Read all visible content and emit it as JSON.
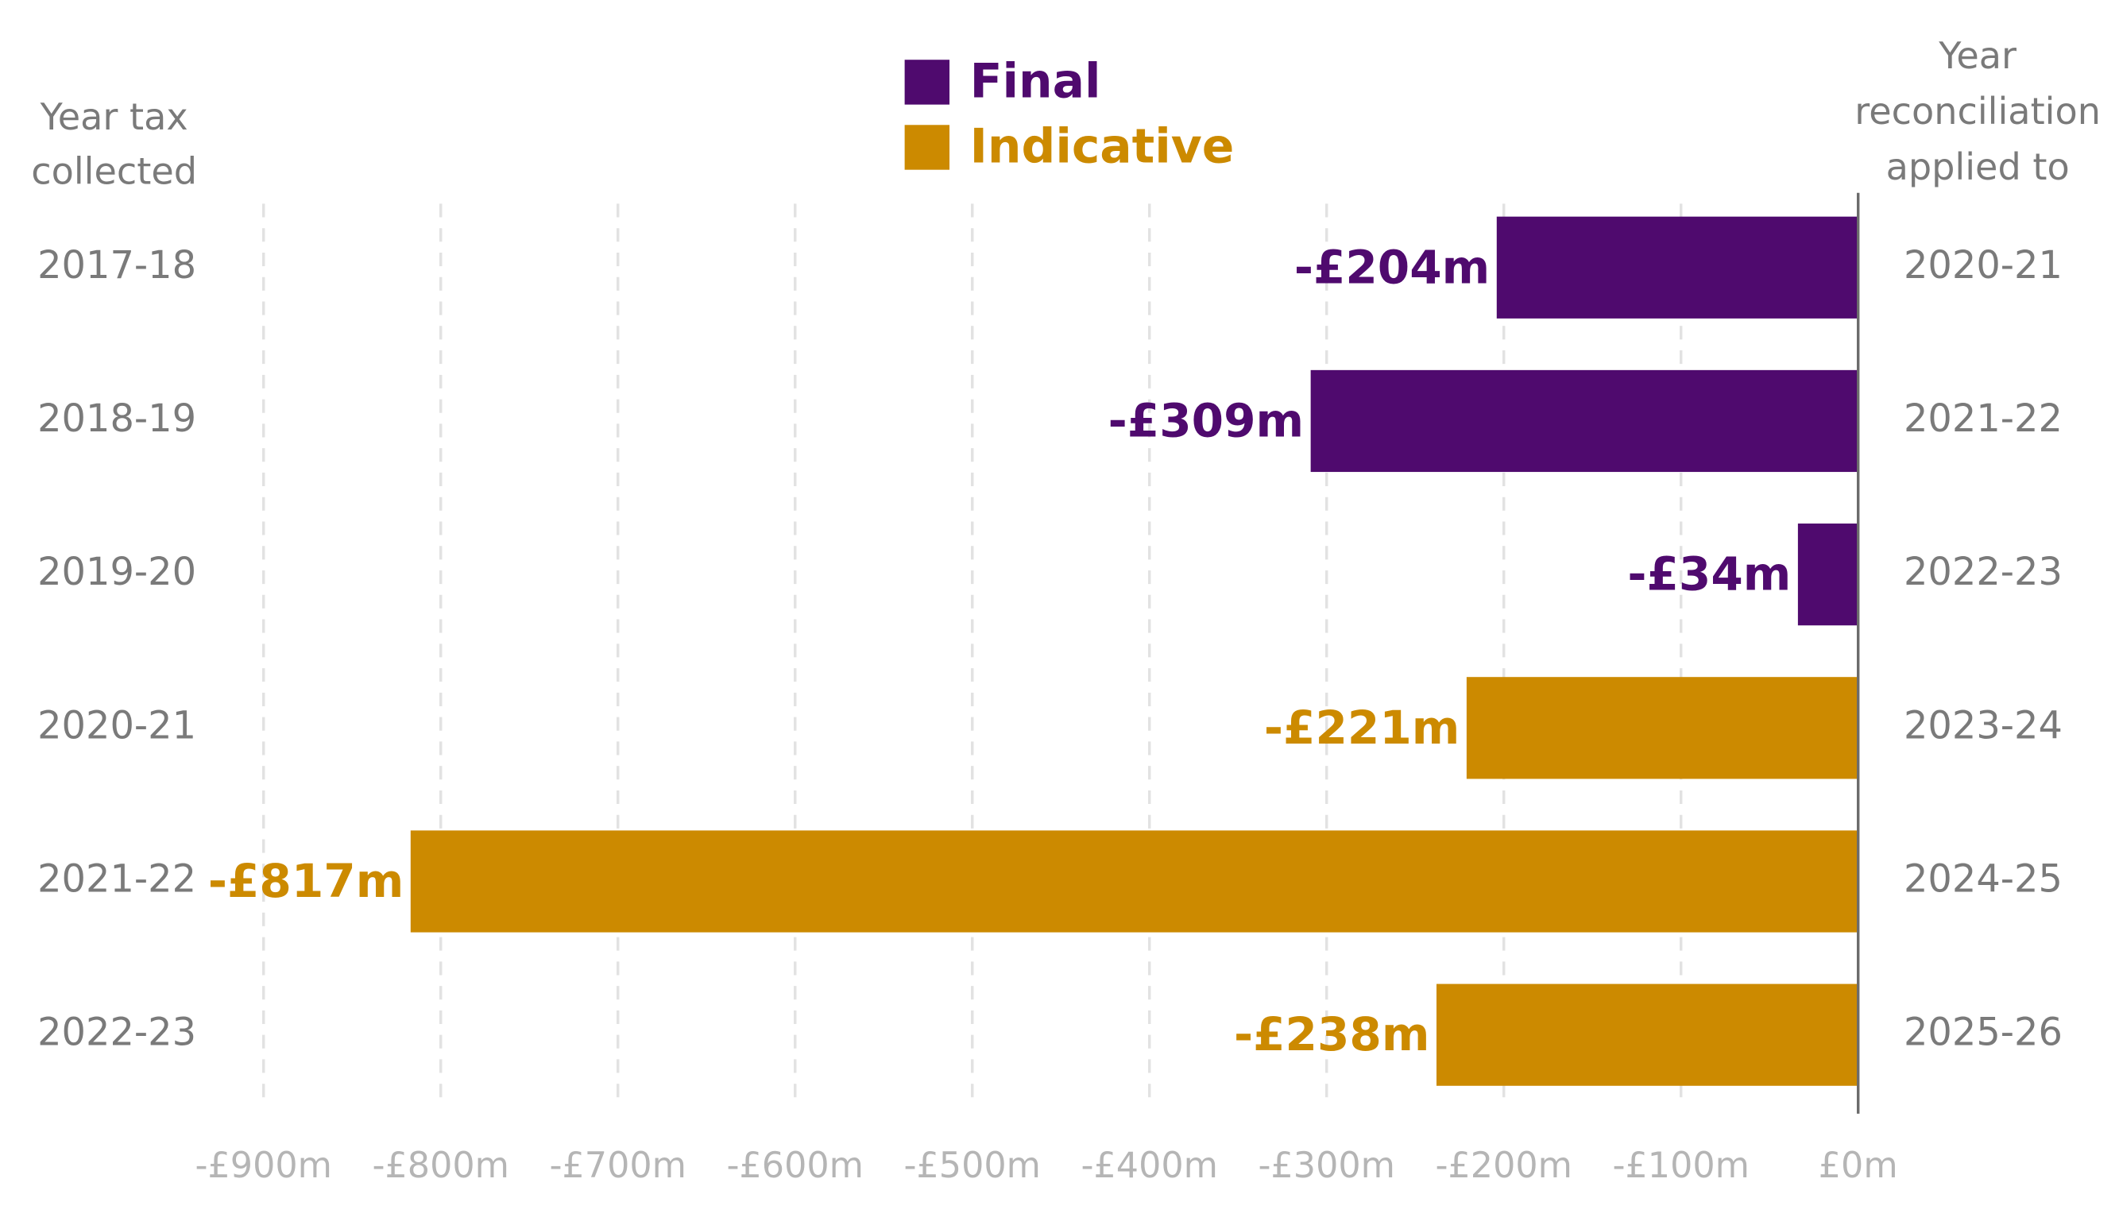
{
  "chart_data": {
    "type": "bar",
    "orientation": "horizontal",
    "categories": [
      "2017-18",
      "2018-19",
      "2019-20",
      "2020-21",
      "2021-22",
      "2022-23"
    ],
    "right_categories": [
      "2020-21",
      "2021-22",
      "2022-23",
      "2023-24",
      "2024-25",
      "2025-26"
    ],
    "left_axis_label": [
      "Year tax",
      "collected"
    ],
    "right_axis_label": [
      "Year",
      "reconciliation",
      "applied to"
    ],
    "series": [
      {
        "name": "Final",
        "color": "#4f0a6e",
        "values": [
          -204,
          -309,
          -34,
          null,
          null,
          null
        ],
        "value_labels": [
          "-£204m",
          "-£309m",
          "-£34m",
          null,
          null,
          null
        ]
      },
      {
        "name": "Indicative",
        "color": "#cc8a00",
        "values": [
          null,
          null,
          null,
          -221,
          -817,
          -238
        ],
        "value_labels": [
          null,
          null,
          null,
          "-£221m",
          "-£817m",
          "-£238m"
        ]
      }
    ],
    "xlim": [
      -900,
      0
    ],
    "xticks": [
      {
        "value": -900,
        "label": "-£900m"
      },
      {
        "value": -800,
        "label": "-£800m"
      },
      {
        "value": -700,
        "label": "-£700m"
      },
      {
        "value": -600,
        "label": "-£600m"
      },
      {
        "value": -500,
        "label": "-£500m"
      },
      {
        "value": -400,
        "label": "-£400m"
      },
      {
        "value": -300,
        "label": "-£300m"
      },
      {
        "value": -200,
        "label": "-£200m"
      },
      {
        "value": -100,
        "label": "-£100m"
      },
      {
        "value": 0,
        "label": "£0m"
      }
    ],
    "grid": true,
    "legend": "top"
  }
}
